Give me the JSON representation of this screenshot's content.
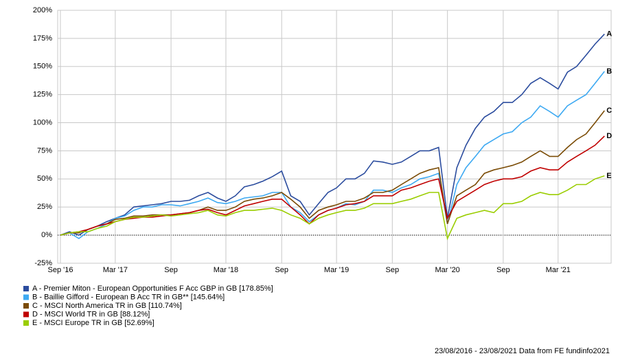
{
  "chart_data": {
    "type": "line",
    "x": [
      "2016-09",
      "2016-10",
      "2016-11",
      "2016-12",
      "2017-01",
      "2017-02",
      "2017-03",
      "2017-04",
      "2017-05",
      "2017-06",
      "2017-07",
      "2017-08",
      "2017-09",
      "2017-10",
      "2017-11",
      "2017-12",
      "2018-01",
      "2018-02",
      "2018-03",
      "2018-04",
      "2018-05",
      "2018-06",
      "2018-07",
      "2018-08",
      "2018-09",
      "2018-10",
      "2018-11",
      "2018-12",
      "2019-01",
      "2019-02",
      "2019-03",
      "2019-04",
      "2019-05",
      "2019-06",
      "2019-07",
      "2019-08",
      "2019-09",
      "2019-10",
      "2019-11",
      "2019-12",
      "2020-01",
      "2020-02",
      "2020-03",
      "2020-04",
      "2020-05",
      "2020-06",
      "2020-07",
      "2020-08",
      "2020-09",
      "2020-10",
      "2020-11",
      "2020-12",
      "2021-01",
      "2021-02",
      "2021-03",
      "2021-04",
      "2021-05",
      "2021-06",
      "2021-07",
      "2021-08"
    ],
    "series": [
      {
        "name": "A - Premier Miton - European Opportunities F Acc GBP in GB [178.85%]",
        "label": "A",
        "color": "#2b4c9e",
        "values": [
          0,
          3,
          0,
          5,
          8,
          12,
          15,
          18,
          25,
          26,
          27,
          28,
          30,
          30,
          31,
          35,
          38,
          33,
          30,
          35,
          43,
          45,
          48,
          52,
          57,
          35,
          30,
          18,
          28,
          38,
          42,
          50,
          50,
          55,
          66,
          65,
          63,
          65,
          70,
          75,
          75,
          78,
          15,
          60,
          80,
          95,
          105,
          110,
          118,
          118,
          125,
          135,
          140,
          135,
          130,
          145,
          150,
          160,
          170,
          178.85
        ]
      },
      {
        "name": "B - Baillie Gifford - European B Acc TR in GB** [145.64%]",
        "label": "B",
        "color": "#3da9f2",
        "values": [
          0,
          2,
          -3,
          3,
          6,
          10,
          15,
          17,
          22,
          25,
          25,
          27,
          27,
          26,
          28,
          30,
          33,
          29,
          28,
          30,
          33,
          34,
          35,
          38,
          38,
          25,
          20,
          12,
          18,
          22,
          24,
          28,
          27,
          30,
          40,
          40,
          38,
          42,
          45,
          50,
          52,
          55,
          10,
          45,
          60,
          70,
          80,
          85,
          90,
          92,
          100,
          105,
          115,
          110,
          105,
          115,
          120,
          125,
          135,
          145.64
        ]
      },
      {
        "name": "C - MSCI North America TR in GB [110.74%]",
        "label": "C",
        "color": "#7a4b05",
        "values": [
          0,
          2,
          2,
          5,
          8,
          10,
          14,
          15,
          17,
          17,
          18,
          18,
          18,
          19,
          20,
          22,
          25,
          22,
          22,
          25,
          30,
          32,
          33,
          35,
          38,
          32,
          25,
          15,
          22,
          25,
          27,
          30,
          30,
          33,
          38,
          38,
          40,
          45,
          50,
          55,
          58,
          60,
          10,
          35,
          40,
          45,
          55,
          58,
          60,
          62,
          65,
          70,
          75,
          70,
          70,
          78,
          85,
          90,
          100,
          110.74
        ]
      },
      {
        "name": "D - MSCI World TR in GB [88.12%]",
        "label": "D",
        "color": "#c00000",
        "values": [
          0,
          2,
          3,
          5,
          8,
          10,
          12,
          14,
          15,
          16,
          16,
          17,
          18,
          19,
          20,
          22,
          23,
          20,
          18,
          22,
          26,
          28,
          30,
          32,
          32,
          25,
          18,
          10,
          18,
          22,
          24,
          27,
          28,
          30,
          35,
          35,
          35,
          40,
          42,
          45,
          48,
          50,
          15,
          30,
          35,
          40,
          45,
          48,
          50,
          50,
          52,
          57,
          60,
          58,
          58,
          65,
          70,
          75,
          80,
          88.12
        ]
      },
      {
        "name": "E - MSCI Europe TR in GB [52.69%]",
        "label": "E",
        "color": "#9acd00",
        "values": [
          0,
          2,
          3,
          3,
          6,
          8,
          12,
          14,
          16,
          16,
          17,
          18,
          17,
          18,
          19,
          20,
          22,
          18,
          17,
          20,
          22,
          22,
          23,
          24,
          22,
          18,
          15,
          10,
          15,
          18,
          20,
          22,
          22,
          24,
          28,
          28,
          28,
          30,
          32,
          35,
          38,
          38,
          -3,
          15,
          18,
          20,
          22,
          20,
          28,
          28,
          30,
          35,
          38,
          36,
          36,
          40,
          45,
          45,
          50,
          52.69
        ]
      }
    ],
    "xlim": [
      "2016-08-23",
      "2021-08-23"
    ],
    "xticks": [
      {
        "value": "2016-09",
        "label": "Sep '16"
      },
      {
        "value": "2017-03",
        "label": "Mar '17"
      },
      {
        "value": "2017-09",
        "label": "Sep"
      },
      {
        "value": "2018-03",
        "label": "Mar '18"
      },
      {
        "value": "2018-09",
        "label": "Sep"
      },
      {
        "value": "2019-03",
        "label": "Mar '19"
      },
      {
        "value": "2019-09",
        "label": "Sep"
      },
      {
        "value": "2020-03",
        "label": "Mar '20"
      },
      {
        "value": "2020-09",
        "label": "Sep"
      },
      {
        "value": "2021-03",
        "label": "Mar '21"
      }
    ],
    "ylim": [
      -25,
      200
    ],
    "yticks": [
      {
        "value": -25,
        "label": "-25%"
      },
      {
        "value": 0,
        "label": "0%"
      },
      {
        "value": 25,
        "label": "25%"
      },
      {
        "value": 50,
        "label": "50%"
      },
      {
        "value": 75,
        "label": "75%"
      },
      {
        "value": 100,
        "label": "100%"
      },
      {
        "value": 125,
        "label": "125%"
      },
      {
        "value": 150,
        "label": "150%"
      },
      {
        "value": 175,
        "label": "175%"
      },
      {
        "value": 200,
        "label": "200%"
      }
    ],
    "grid": true,
    "footer": "23/08/2016 - 23/08/2021 Data from FE fundinfo2021"
  }
}
